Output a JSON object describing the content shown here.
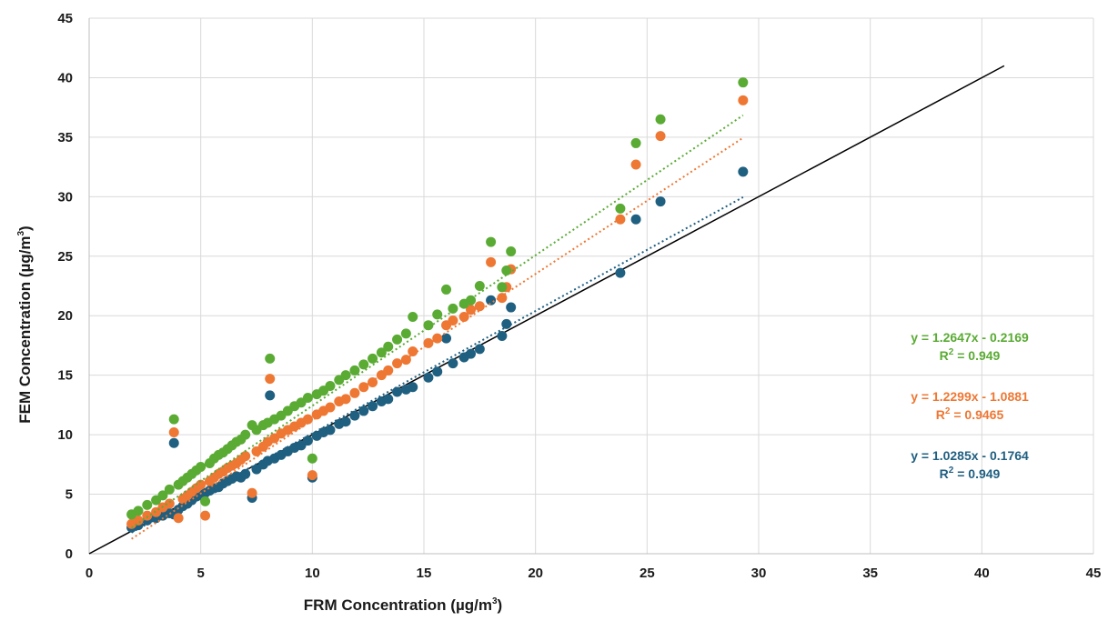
{
  "chart_data": {
    "type": "scatter",
    "title": "",
    "xlabel": {
      "text": "FRM Concentration (µg/m",
      "sup": "3",
      "close": ")"
    },
    "ylabel": {
      "text": "FEM Concentration (µg/m",
      "sup": "3",
      "close": ")"
    },
    "xlim": [
      0,
      45
    ],
    "ylim": [
      0,
      45
    ],
    "xticks": [
      0,
      5,
      10,
      15,
      20,
      25,
      30,
      35,
      40,
      45
    ],
    "yticks": [
      0,
      5,
      10,
      15,
      20,
      25,
      30,
      35,
      40,
      45
    ],
    "grid": true,
    "reference_line": {
      "x": [
        0,
        41
      ],
      "y": [
        0,
        41
      ],
      "color": "#000000"
    },
    "series": [
      {
        "key": "blue",
        "color": "#1f5f80",
        "trend": {
          "slope": 1.0285,
          "intercept": -0.1764,
          "x_range": [
            1.9,
            29.3
          ]
        },
        "equation": "y = 1.0285x - 0.1764",
        "r2_label": "R",
        "r2_sup": "2",
        "r2_value": " = 0.949",
        "points": [
          [
            1.9,
            2.2
          ],
          [
            2.2,
            2.4
          ],
          [
            2.6,
            2.8
          ],
          [
            3.0,
            3.0
          ],
          [
            3.3,
            3.2
          ],
          [
            3.6,
            3.4
          ],
          [
            3.8,
            3.3
          ],
          [
            3.8,
            9.3
          ],
          [
            4.0,
            3.7
          ],
          [
            4.2,
            4.0
          ],
          [
            4.4,
            4.2
          ],
          [
            4.6,
            4.5
          ],
          [
            4.8,
            4.8
          ],
          [
            5.0,
            4.9
          ],
          [
            5.2,
            5.1
          ],
          [
            5.4,
            5.3
          ],
          [
            5.6,
            5.5
          ],
          [
            5.8,
            5.6
          ],
          [
            6.0,
            5.9
          ],
          [
            6.2,
            6.1
          ],
          [
            6.4,
            6.3
          ],
          [
            6.6,
            6.5
          ],
          [
            6.8,
            6.4
          ],
          [
            7.0,
            6.7
          ],
          [
            7.3,
            4.7
          ],
          [
            7.5,
            7.1
          ],
          [
            7.8,
            7.5
          ],
          [
            8.0,
            7.8
          ],
          [
            8.1,
            13.3
          ],
          [
            8.3,
            8.0
          ],
          [
            8.6,
            8.3
          ],
          [
            8.9,
            8.6
          ],
          [
            9.2,
            8.9
          ],
          [
            9.5,
            9.1
          ],
          [
            9.8,
            9.5
          ],
          [
            10.0,
            6.4
          ],
          [
            10.2,
            9.9
          ],
          [
            10.5,
            10.2
          ],
          [
            10.8,
            10.4
          ],
          [
            11.2,
            10.9
          ],
          [
            11.5,
            11.1
          ],
          [
            11.9,
            11.6
          ],
          [
            12.3,
            12.0
          ],
          [
            12.7,
            12.4
          ],
          [
            13.1,
            12.8
          ],
          [
            13.4,
            13.0
          ],
          [
            13.8,
            13.6
          ],
          [
            14.2,
            13.8
          ],
          [
            14.5,
            14.0
          ],
          [
            15.2,
            14.8
          ],
          [
            15.6,
            15.3
          ],
          [
            16.0,
            18.1
          ],
          [
            16.3,
            16.0
          ],
          [
            16.8,
            16.5
          ],
          [
            17.1,
            16.8
          ],
          [
            17.5,
            17.2
          ],
          [
            18.0,
            21.3
          ],
          [
            18.5,
            18.3
          ],
          [
            18.7,
            19.3
          ],
          [
            18.9,
            20.7
          ],
          [
            23.8,
            23.6
          ],
          [
            24.5,
            28.1
          ],
          [
            25.6,
            29.6
          ],
          [
            29.3,
            32.1
          ]
        ]
      },
      {
        "key": "orange",
        "color": "#ee7733",
        "trend": {
          "slope": 1.2299,
          "intercept": -1.0881,
          "x_range": [
            1.9,
            29.3
          ]
        },
        "equation": "y = 1.2299x - 1.0881",
        "r2_label": "R",
        "r2_sup": "2",
        "r2_value": " = 0.9465",
        "points": [
          [
            1.9,
            2.5
          ],
          [
            2.2,
            2.8
          ],
          [
            2.6,
            3.2
          ],
          [
            3.0,
            3.5
          ],
          [
            3.3,
            3.9
          ],
          [
            3.6,
            4.2
          ],
          [
            3.8,
            10.2
          ],
          [
            4.0,
            3.0
          ],
          [
            4.2,
            4.6
          ],
          [
            4.4,
            4.9
          ],
          [
            4.6,
            5.2
          ],
          [
            4.8,
            5.5
          ],
          [
            5.0,
            5.8
          ],
          [
            5.2,
            3.2
          ],
          [
            5.4,
            6.1
          ],
          [
            5.6,
            6.4
          ],
          [
            5.8,
            6.7
          ],
          [
            6.0,
            6.9
          ],
          [
            6.2,
            7.2
          ],
          [
            6.4,
            7.4
          ],
          [
            6.6,
            7.6
          ],
          [
            6.8,
            7.9
          ],
          [
            7.0,
            8.2
          ],
          [
            7.3,
            5.1
          ],
          [
            7.5,
            8.6
          ],
          [
            7.8,
            9.0
          ],
          [
            8.0,
            9.4
          ],
          [
            8.1,
            14.7
          ],
          [
            8.3,
            9.7
          ],
          [
            8.6,
            10.1
          ],
          [
            8.9,
            10.4
          ],
          [
            9.2,
            10.7
          ],
          [
            9.5,
            11.0
          ],
          [
            9.8,
            11.3
          ],
          [
            10.0,
            6.6
          ],
          [
            10.2,
            11.7
          ],
          [
            10.5,
            12.0
          ],
          [
            10.8,
            12.3
          ],
          [
            11.2,
            12.8
          ],
          [
            11.5,
            13.0
          ],
          [
            11.9,
            13.5
          ],
          [
            12.3,
            14.0
          ],
          [
            12.7,
            14.4
          ],
          [
            13.1,
            15.0
          ],
          [
            13.4,
            15.4
          ],
          [
            13.8,
            16.0
          ],
          [
            14.2,
            16.3
          ],
          [
            14.5,
            17.0
          ],
          [
            15.2,
            17.7
          ],
          [
            15.6,
            18.1
          ],
          [
            16.0,
            19.2
          ],
          [
            16.3,
            19.6
          ],
          [
            16.8,
            19.9
          ],
          [
            17.1,
            20.5
          ],
          [
            17.5,
            20.8
          ],
          [
            18.0,
            24.5
          ],
          [
            18.5,
            21.5
          ],
          [
            18.7,
            22.4
          ],
          [
            18.9,
            23.9
          ],
          [
            23.8,
            28.1
          ],
          [
            24.5,
            32.7
          ],
          [
            25.6,
            35.1
          ],
          [
            29.3,
            38.1
          ]
        ]
      },
      {
        "key": "green",
        "color": "#5aab34",
        "trend": {
          "slope": 1.2647,
          "intercept": -0.2169,
          "x_range": [
            1.9,
            29.3
          ]
        },
        "equation": "y = 1.2647x - 0.2169",
        "r2_label": "R",
        "r2_sup": "2",
        "r2_value": " = 0.949",
        "points": [
          [
            1.9,
            3.3
          ],
          [
            2.2,
            3.6
          ],
          [
            2.6,
            4.1
          ],
          [
            3.0,
            4.5
          ],
          [
            3.3,
            4.9
          ],
          [
            3.6,
            5.4
          ],
          [
            3.8,
            11.3
          ],
          [
            4.0,
            5.8
          ],
          [
            4.2,
            6.1
          ],
          [
            4.4,
            6.4
          ],
          [
            4.6,
            6.7
          ],
          [
            4.8,
            7.0
          ],
          [
            5.0,
            7.3
          ],
          [
            5.2,
            4.4
          ],
          [
            5.4,
            7.6
          ],
          [
            5.6,
            8.0
          ],
          [
            5.8,
            8.3
          ],
          [
            6.0,
            8.5
          ],
          [
            6.2,
            8.8
          ],
          [
            6.4,
            9.1
          ],
          [
            6.6,
            9.4
          ],
          [
            6.8,
            9.6
          ],
          [
            7.0,
            10.0
          ],
          [
            7.3,
            10.8
          ],
          [
            7.5,
            10.4
          ],
          [
            7.8,
            10.8
          ],
          [
            8.0,
            11.0
          ],
          [
            8.1,
            16.4
          ],
          [
            8.3,
            11.3
          ],
          [
            8.6,
            11.6
          ],
          [
            8.9,
            12.0
          ],
          [
            9.2,
            12.4
          ],
          [
            9.5,
            12.7
          ],
          [
            9.8,
            13.1
          ],
          [
            10.0,
            8.0
          ],
          [
            10.2,
            13.4
          ],
          [
            10.5,
            13.7
          ],
          [
            10.8,
            14.1
          ],
          [
            11.2,
            14.6
          ],
          [
            11.5,
            15.0
          ],
          [
            11.9,
            15.4
          ],
          [
            12.3,
            15.9
          ],
          [
            12.7,
            16.4
          ],
          [
            13.1,
            16.9
          ],
          [
            13.4,
            17.4
          ],
          [
            13.8,
            18.0
          ],
          [
            14.2,
            18.5
          ],
          [
            14.5,
            19.9
          ],
          [
            15.2,
            19.2
          ],
          [
            15.6,
            20.1
          ],
          [
            16.0,
            22.2
          ],
          [
            16.3,
            20.6
          ],
          [
            16.8,
            21.0
          ],
          [
            17.1,
            21.3
          ],
          [
            17.5,
            22.5
          ],
          [
            18.0,
            26.2
          ],
          [
            18.5,
            22.4
          ],
          [
            18.7,
            23.8
          ],
          [
            18.9,
            25.4
          ],
          [
            23.8,
            29.0
          ],
          [
            24.5,
            34.5
          ],
          [
            25.6,
            36.5
          ],
          [
            29.3,
            39.6
          ]
        ]
      }
    ],
    "legend_order": [
      "green",
      "orange",
      "blue"
    ]
  }
}
